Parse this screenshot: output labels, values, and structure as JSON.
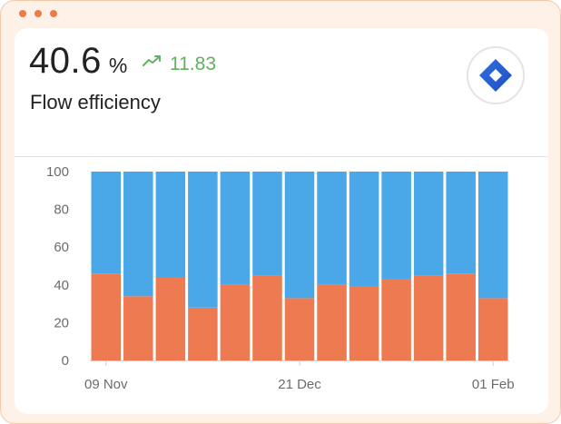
{
  "window": {
    "dot_color": "#ee7a4a"
  },
  "metric": {
    "value": "40.6",
    "unit": "%",
    "delta": "11.83",
    "delta_color": "#5fb25f",
    "trend_icon": "trending-up-icon"
  },
  "card": {
    "title": "Flow efficiency",
    "logo_icon": "jira-logo-icon"
  },
  "chart_data": {
    "type": "bar",
    "stacked": true,
    "ylim": [
      0,
      100
    ],
    "yticks": [
      0,
      20,
      40,
      60,
      80,
      100
    ],
    "x_tick_labels": [
      "09 Nov",
      "21 Dec",
      "01 Feb"
    ],
    "grid": false,
    "legend": "none",
    "series": [
      {
        "color": "#ee7a52",
        "values": [
          46,
          34,
          44,
          28,
          40,
          45,
          33,
          40,
          39,
          43,
          45,
          46,
          33
        ]
      },
      {
        "color": "#4aa8e8",
        "values": [
          54,
          66,
          56,
          72,
          60,
          55,
          67,
          60,
          61,
          57,
          55,
          54,
          67
        ]
      }
    ]
  }
}
